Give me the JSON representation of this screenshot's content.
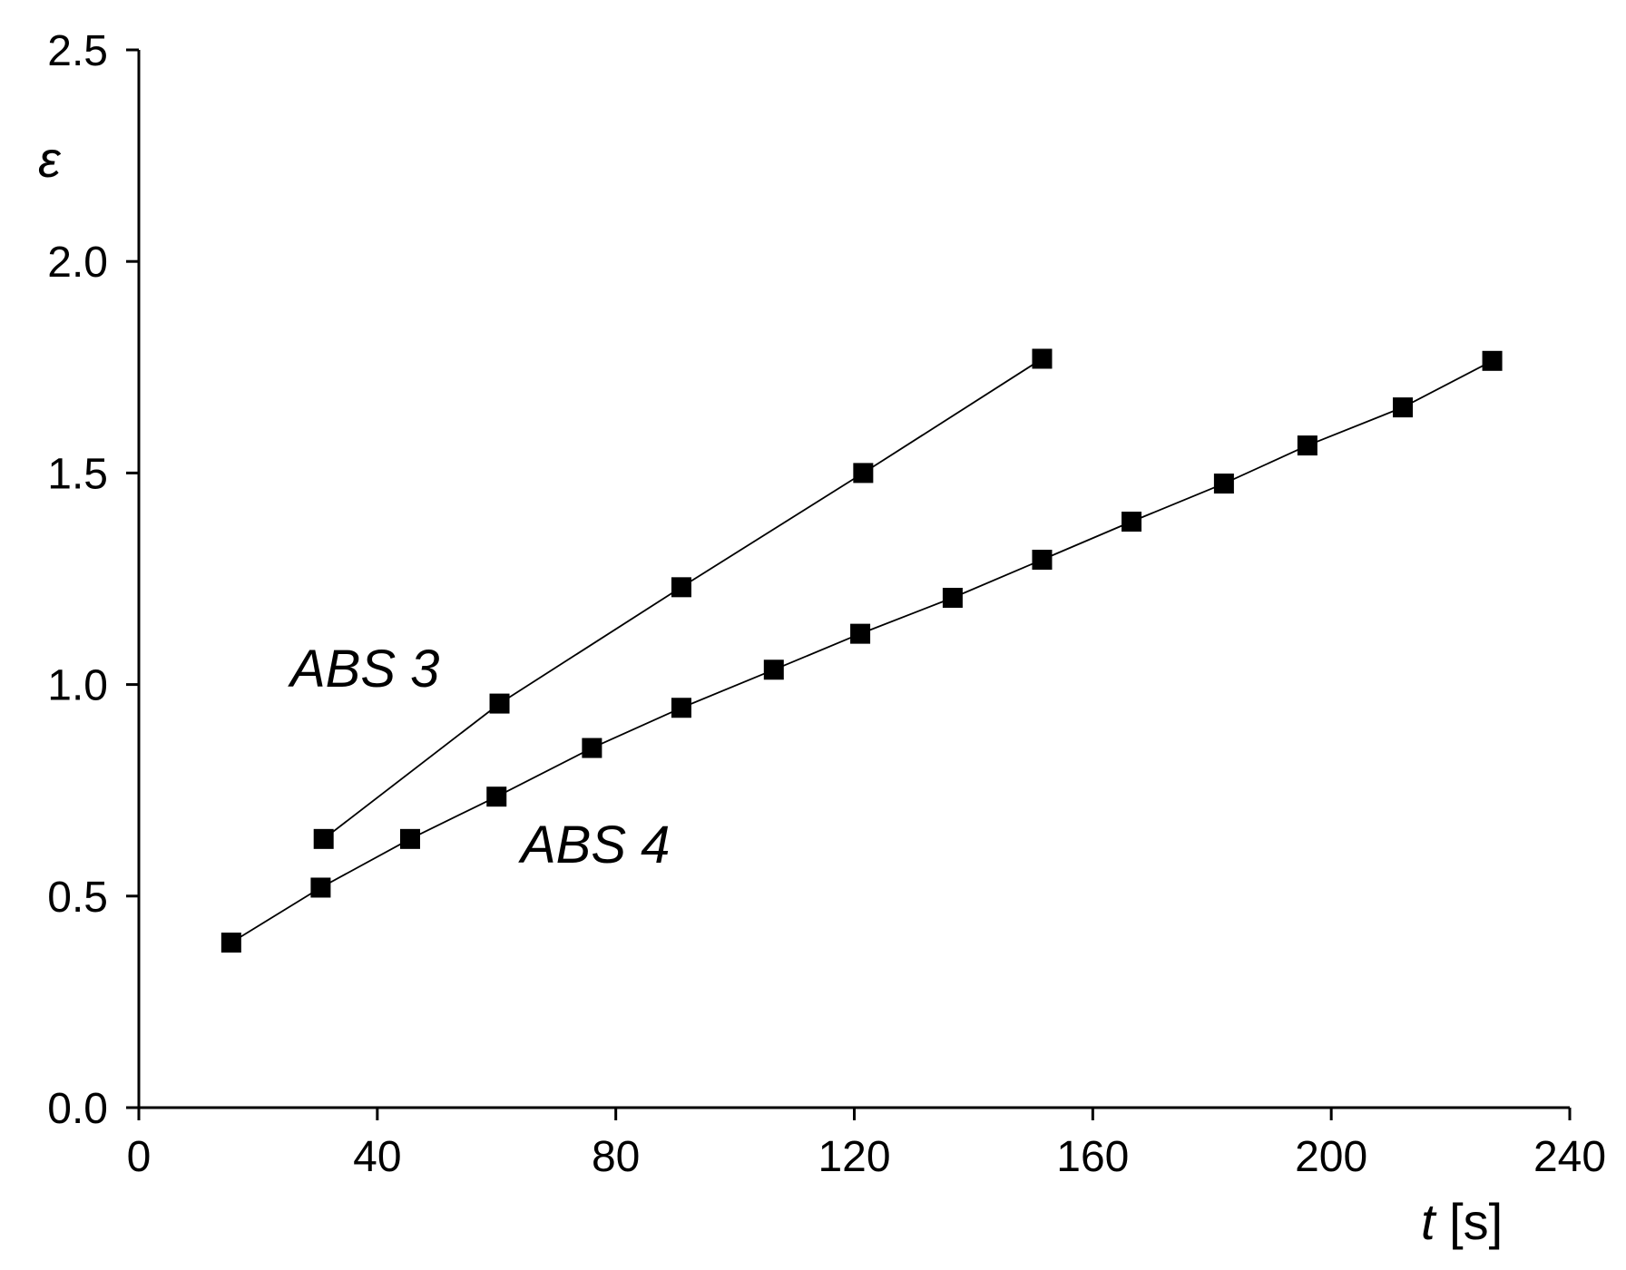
{
  "chart_data": {
    "type": "line",
    "title": "",
    "xlabel": "t [s]",
    "ylabel": "ε",
    "xlim": [
      0,
      240
    ],
    "ylim": [
      0,
      2.5
    ],
    "xticks": [
      0,
      40,
      80,
      120,
      160,
      200,
      240
    ],
    "yticks": [
      0.0,
      0.5,
      1.0,
      1.5,
      2.0,
      2.5
    ],
    "xtick_labels": [
      "0",
      "40",
      "80",
      "120",
      "160",
      "200",
      "240"
    ],
    "ytick_labels": [
      "0.0",
      "0.5",
      "1.0",
      "1.5",
      "2.0",
      "2.5"
    ],
    "grid": false,
    "legend": "none",
    "marker": "square",
    "color": "#000000",
    "series": [
      {
        "name": "ABS 3",
        "x": [
          31,
          60.5,
          91,
          121.5,
          151.5
        ],
        "y": [
          0.635,
          0.955,
          1.23,
          1.5,
          1.77
        ]
      },
      {
        "name": "ABS 4",
        "x": [
          15.5,
          30.5,
          45.5,
          60,
          76,
          91,
          106.5,
          121,
          136.5,
          151.5,
          166.5,
          182,
          196,
          212,
          227
        ],
        "y": [
          0.39,
          0.52,
          0.635,
          0.735,
          0.85,
          0.945,
          1.035,
          1.12,
          1.205,
          1.295,
          1.385,
          1.475,
          1.565,
          1.655,
          1.765
        ]
      }
    ],
    "annotations": [
      {
        "text": "ABS 3",
        "series": "ABS 3"
      },
      {
        "text": "ABS 4",
        "series": "ABS 4"
      }
    ]
  }
}
